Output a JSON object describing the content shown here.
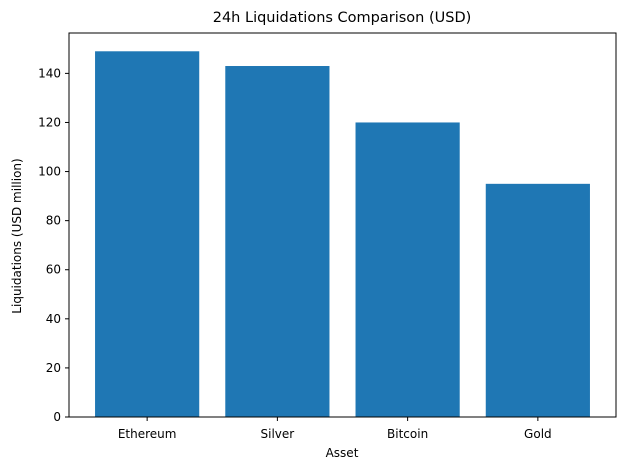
{
  "chart_data": {
    "type": "bar",
    "title": "24h Liquidations Comparison (USD)",
    "xlabel": "Asset",
    "ylabel": "Liquidations (USD million)",
    "categories": [
      "Ethereum",
      "Silver",
      "Bitcoin",
      "Gold"
    ],
    "values": [
      149,
      143,
      120,
      95
    ],
    "ylim": [
      0,
      156.45
    ],
    "yticks": [
      0,
      20,
      40,
      60,
      80,
      100,
      120,
      140
    ],
    "grid": false,
    "bar_color": "#1f77b4"
  }
}
